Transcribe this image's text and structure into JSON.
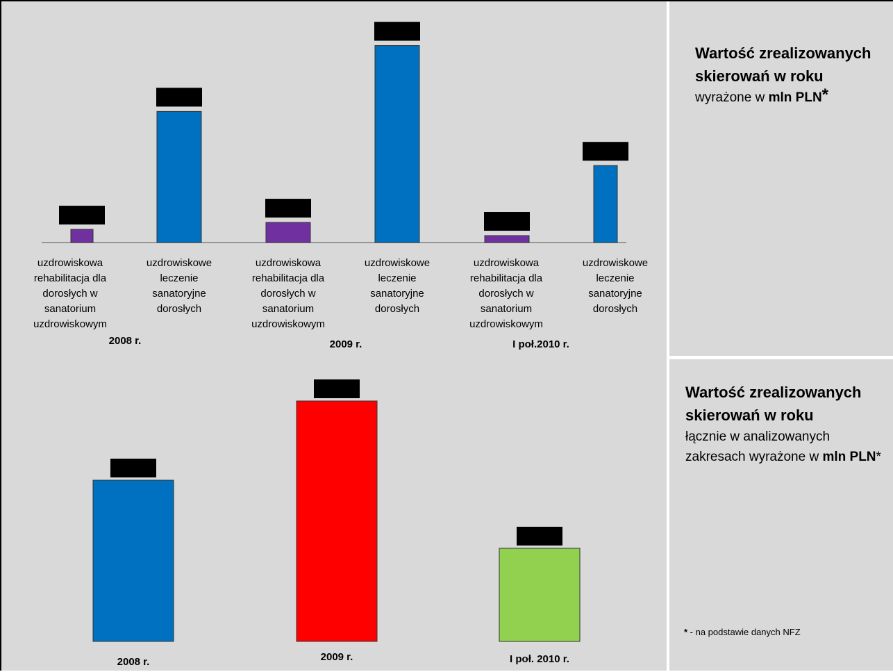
{
  "panel_top": {
    "title": "Wartość zrealizowanych skierowań w roku",
    "subtitle_prefix": "wyrażone w ",
    "subtitle_unit": "mln PLN",
    "star": "*"
  },
  "panel_bottom": {
    "title": "Wartość zrealizowanych skierowań w roku",
    "subtitle_prefix": "łącznie  w analizowanych zakresach wyrażone w ",
    "subtitle_unit": "mln PLN",
    "star": "*"
  },
  "footnote": {
    "star": "*",
    "text": " - na podstawie danych NFZ"
  },
  "colors": {
    "rehab": "#7030a0",
    "leczenie": "#0070c0",
    "y2008": "#0070c0",
    "y2009": "#ff0000",
    "y2010": "#92d050",
    "label_box": "#000000"
  },
  "chart_data": [
    {
      "type": "bar",
      "groups": [
        "2008 r.",
        "2009 r.",
        "I poł.2010 r."
      ],
      "categories": [
        "uzdrowiskowa rehabilitacja dla dorosłych w sanatorium uzdrowiskowym",
        "uzdrowiskowe leczenie sanatoryjne dorosłych",
        "uzdrowiskowa rehabilitacja dla dorosłych w sanatorium uzdrowiskowym",
        "uzdrowiskowe leczenie sanatoryjne dorosłych",
        "uzdrowiskowa rehabilitacja dla dorosłych w sanatorium uzdrowiskowym",
        "uzdrowiskowe leczenie sanatoryjne dorosłych"
      ],
      "values": [
        19,
        189,
        29,
        284,
        10,
        111
      ],
      "series_kind": [
        "rehab",
        "leczenie",
        "rehab",
        "leczenie",
        "rehab",
        "leczenie"
      ],
      "data_labels_hidden": true
    },
    {
      "type": "bar",
      "categories": [
        "2008 r.",
        "2009 r.",
        "I poł. 2010 r."
      ],
      "values": [
        232,
        346,
        134
      ],
      "series_kind": [
        "y2008",
        "y2009",
        "y2010"
      ],
      "data_labels_hidden": true
    }
  ]
}
